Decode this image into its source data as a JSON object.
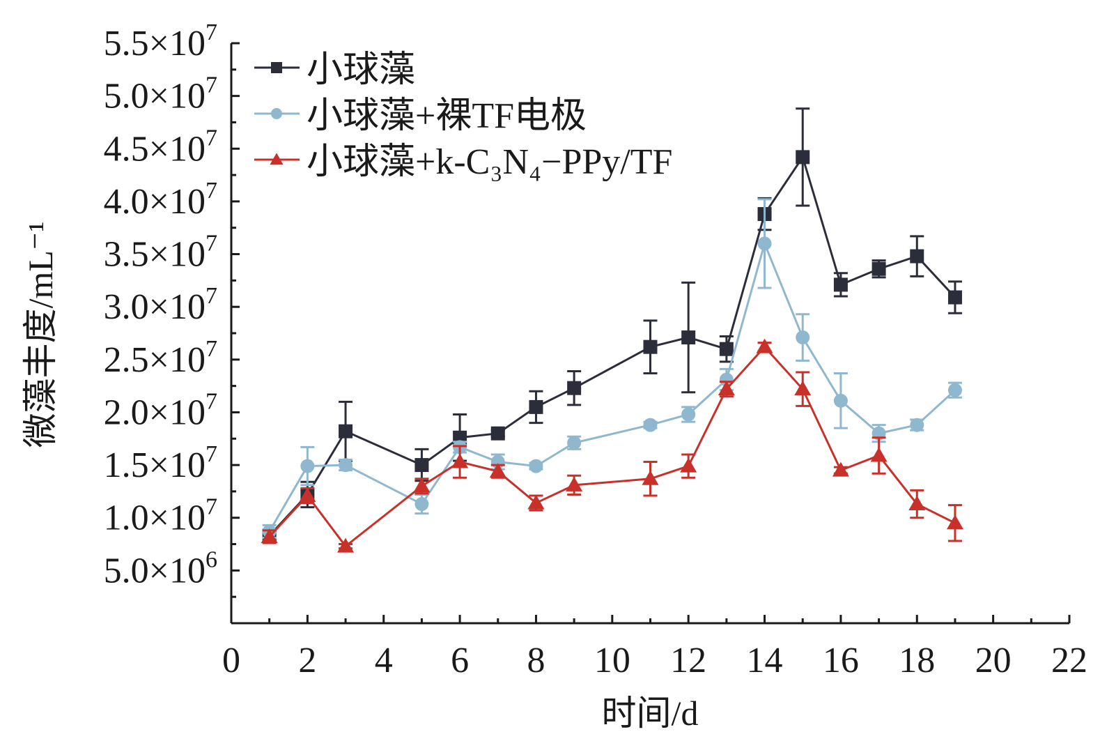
{
  "chart_data": {
    "type": "line",
    "title": "",
    "xlabel": "时间/d",
    "ylabel": "微藻丰度/mL⁻¹",
    "xlim": [
      0,
      22
    ],
    "ylim": [
      0,
      55000000
    ],
    "xticks": [
      0,
      2,
      4,
      6,
      8,
      10,
      12,
      14,
      16,
      18,
      20,
      22
    ],
    "xtick_labels": [
      "0",
      "2",
      "4",
      "6",
      "8",
      "10",
      "12",
      "14",
      "16",
      "18",
      "20",
      "22"
    ],
    "yticks": [
      5000000,
      10000000,
      15000000,
      20000000,
      25000000,
      30000000,
      35000000,
      40000000,
      45000000,
      50000000,
      55000000
    ],
    "ytick_labels": [
      {
        "m": "5.0×10",
        "e": "6"
      },
      {
        "m": "1.0×10",
        "e": "7"
      },
      {
        "m": "1.5×10",
        "e": "7"
      },
      {
        "m": "2.0×10",
        "e": "7"
      },
      {
        "m": "2.5×10",
        "e": "7"
      },
      {
        "m": "3.0×10",
        "e": "7"
      },
      {
        "m": "3.5×10",
        "e": "7"
      },
      {
        "m": "4.0×10",
        "e": "7"
      },
      {
        "m": "4.5×10",
        "e": "7"
      },
      {
        "m": "5.0×10",
        "e": "7"
      },
      {
        "m": "5.5×10",
        "e": "7"
      }
    ],
    "grid": false,
    "legend_position": "top-left",
    "x": [
      1,
      2,
      3,
      5,
      6,
      7,
      8,
      9,
      11,
      12,
      13,
      14,
      15,
      16,
      17,
      18,
      19
    ],
    "series": [
      {
        "name": "小球藻",
        "color": "#2b2d3a",
        "marker": "square",
        "values": [
          0.83,
          1.22,
          1.82,
          1.5,
          1.76,
          1.8,
          2.05,
          2.23,
          2.62,
          2.71,
          2.6,
          3.88,
          4.42,
          3.21,
          3.36,
          3.48,
          3.09
        ],
        "errors": [
          0.05,
          0.12,
          0.28,
          0.15,
          0.22,
          0.03,
          0.15,
          0.16,
          0.25,
          0.52,
          0.12,
          0.15,
          0.46,
          0.11,
          0.08,
          0.19,
          0.15
        ],
        "unit_multiplier": 10000000
      },
      {
        "name": "小球藻+裸TF电极",
        "color": "#8fb8cf",
        "marker": "circle",
        "values": [
          0.87,
          1.49,
          1.5,
          1.13,
          1.67,
          1.53,
          1.49,
          1.71,
          1.88,
          1.98,
          2.31,
          3.6,
          2.71,
          2.11,
          1.8,
          1.88,
          2.21
        ],
        "errors": [
          0.06,
          0.18,
          0.05,
          0.09,
          0.05,
          0.07,
          0.03,
          0.06,
          0.03,
          0.07,
          0.1,
          0.42,
          0.22,
          0.26,
          0.08,
          0.05,
          0.07
        ],
        "unit_multiplier": 10000000
      },
      {
        "name": "小球藻+k-C₃N₄−PPy/TF",
        "color": "#c8302a",
        "marker": "triangle",
        "values": [
          0.82,
          1.21,
          0.73,
          1.3,
          1.53,
          1.44,
          1.14,
          1.31,
          1.37,
          1.49,
          2.22,
          2.62,
          2.22,
          1.45,
          1.59,
          1.13,
          0.95
        ],
        "errors": [
          0.06,
          0.07,
          0.02,
          0.07,
          0.15,
          0.06,
          0.07,
          0.09,
          0.16,
          0.11,
          0.07,
          0.04,
          0.16,
          0.03,
          0.17,
          0.13,
          0.17
        ],
        "unit_multiplier": 10000000
      }
    ]
  }
}
